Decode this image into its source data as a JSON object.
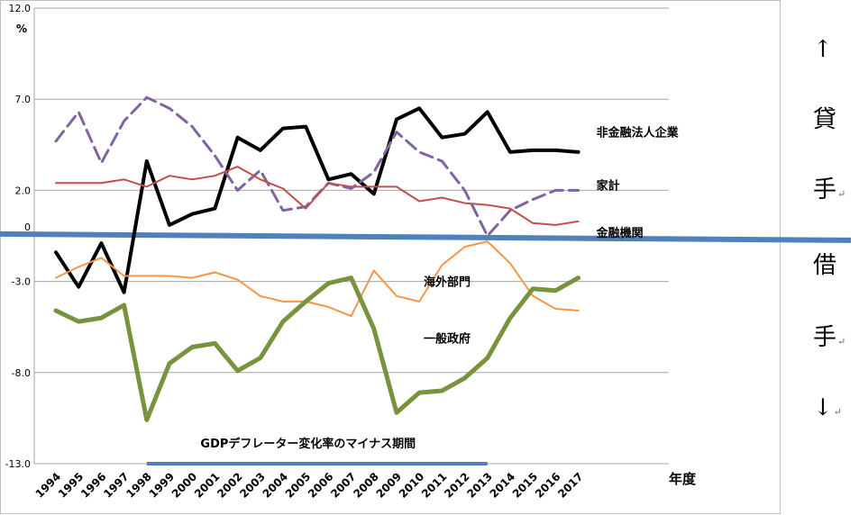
{
  "chart_data": {
    "type": "line",
    "unit": "%",
    "xlabel": "年度",
    "ylim": [
      -13.0,
      12.0
    ],
    "yticks": [
      {
        "value": 12.0,
        "label": "12.0"
      },
      {
        "value": 7.0,
        "label": "7.0"
      },
      {
        "value": 2.0,
        "label": "2.0"
      },
      {
        "value": 0,
        "label": "0"
      },
      {
        "value": -3.0,
        "label": "-3.0"
      },
      {
        "value": -8.0,
        "label": "-8.0"
      },
      {
        "value": -13.0,
        "label": "-13.0"
      }
    ],
    "grid": true,
    "categories": [
      "1994",
      "1995",
      "1996",
      "1997",
      "1998",
      "1999",
      "2000",
      "2001",
      "2002",
      "2003",
      "2004",
      "2005",
      "2006",
      "2007",
      "2008",
      "2009",
      "2010",
      "2011",
      "2012",
      "2013",
      "2014",
      "2015",
      "2016",
      "2017"
    ],
    "series": [
      {
        "name": "非金融法人企業",
        "color": "#000000",
        "width": 4,
        "dash": "",
        "values": [
          -1.4,
          -3.3,
          -0.9,
          -3.6,
          3.6,
          0.1,
          0.7,
          1.0,
          4.9,
          4.2,
          5.4,
          5.5,
          2.6,
          2.9,
          1.8,
          5.9,
          6.5,
          4.9,
          5.1,
          6.3,
          4.1,
          4.2,
          4.2,
          4.1
        ],
        "label_at": {
          "index": 23,
          "value": 5.2
        }
      },
      {
        "name": "家計",
        "color": "#8064A2",
        "width": 3,
        "dash": "14,7",
        "values": [
          4.7,
          6.3,
          3.5,
          5.8,
          7.1,
          6.5,
          5.5,
          3.9,
          2.0,
          3.1,
          0.9,
          1.1,
          2.4,
          2.1,
          3.0,
          5.2,
          4.1,
          3.6,
          2.0,
          -0.5,
          0.9,
          1.5,
          2.0,
          2.0
        ],
        "label_at": {
          "index": 23,
          "value": 2.3
        }
      },
      {
        "name": "金融機関",
        "color": "#C0504D",
        "width": 2,
        "dash": "",
        "values": [
          2.4,
          2.4,
          2.4,
          2.6,
          2.2,
          2.8,
          2.6,
          2.8,
          3.3,
          2.6,
          2.1,
          1.0,
          2.4,
          2.2,
          2.2,
          2.2,
          1.4,
          1.6,
          1.3,
          1.2,
          1.0,
          0.2,
          0.1,
          0.3
        ],
        "label_at": {
          "index": 23,
          "value": -0.3
        }
      },
      {
        "name": "海外部門",
        "color": "#F79646",
        "width": 2,
        "dash": "",
        "values": [
          -2.8,
          -2.2,
          -1.7,
          -2.7,
          -2.7,
          -2.7,
          -2.8,
          -2.5,
          -2.9,
          -3.8,
          -4.1,
          -4.1,
          -4.4,
          -4.9,
          -2.4,
          -3.8,
          -4.1,
          -2.1,
          -1.1,
          -0.8,
          -2.0,
          -3.8,
          -4.5,
          -4.6
        ],
        "label_at": {
          "index": 15,
          "value": -3.0
        }
      },
      {
        "name": "一般政府",
        "color": "#77933C",
        "width": 5,
        "dash": "",
        "values": [
          -4.6,
          -5.2,
          -5.0,
          -4.3,
          -10.6,
          -7.5,
          -6.6,
          -6.4,
          -7.9,
          -7.2,
          -5.2,
          -4.1,
          -3.1,
          -2.8,
          -5.6,
          -10.2,
          -9.1,
          -9.0,
          -8.3,
          -7.2,
          -5.0,
          -3.4,
          -3.5,
          -2.8
        ],
        "label_at": {
          "index": 15,
          "value": -6.1
        }
      }
    ],
    "deflation_period": {
      "label": "GDPデフレーター変化率のマイナス期間",
      "from": "1998",
      "to": "2013",
      "color": "#4F81BD"
    }
  },
  "side_arrows": {
    "up": "↑",
    "lend_1": "貸",
    "lend_2": "手",
    "borrow_1": "借",
    "borrow_2": "手",
    "down": "↓",
    "mark": "↵"
  }
}
